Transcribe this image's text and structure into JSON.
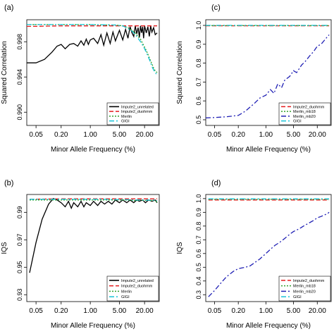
{
  "figure": {
    "panels": [
      {
        "tag": "(a)",
        "ylabel": "Squared Correlation",
        "xlabel": "Minor Allele Frequency (%)"
      },
      {
        "tag": "(c)",
        "ylabel": "Squared Correlation",
        "xlabel": "Minor Allele Frequency (%)"
      },
      {
        "tag": "(b)",
        "ylabel": "IQS",
        "xlabel": "Minor Allele Frequency (%)"
      },
      {
        "tag": "(d)",
        "ylabel": "IQS",
        "xlabel": "Minor Allele Frequency (%)"
      }
    ]
  },
  "chart_data": [
    {
      "type": "line",
      "title": "(a)",
      "xlabel": "Minor Allele Frequency (%)",
      "ylabel": "Squared Correlation",
      "x_scale": "log",
      "xlim": [
        0.03,
        45
      ],
      "ylim": [
        0.9885,
        1.0005
      ],
      "x_ticks": [
        0.05,
        0.2,
        1.0,
        5.0,
        20.0
      ],
      "x_tick_labels": [
        "0.05",
        "0.20",
        "1.00",
        "5.00",
        "20.00"
      ],
      "y_ticks": [
        0.99,
        0.994,
        0.998
      ],
      "y_tick_labels": [
        "0.990",
        "0.994",
        "0.998"
      ],
      "legend_position": "bottom-right",
      "series": [
        {
          "name": "Impute2_unrelated",
          "color": "#000000",
          "dash": "solid",
          "x": [
            0.03,
            0.05,
            0.08,
            0.12,
            0.16,
            0.2,
            0.25,
            0.32,
            0.4,
            0.5,
            0.6,
            0.7,
            0.8,
            0.9,
            1.0,
            1.2,
            1.5,
            1.8,
            2.1,
            2.5,
            3.0,
            3.5,
            4.0,
            5.0,
            6.0,
            7.0,
            8.0,
            9.0,
            10,
            11,
            12,
            13,
            14,
            15,
            16,
            17,
            18,
            19,
            20,
            22,
            24,
            26,
            28,
            30,
            33,
            36,
            40
          ],
          "y": [
            0.9956,
            0.9956,
            0.996,
            0.9968,
            0.9975,
            0.9977,
            0.9972,
            0.9977,
            0.9978,
            0.9975,
            0.9981,
            0.9976,
            0.9983,
            0.9977,
            0.9982,
            0.9984,
            0.9978,
            0.9988,
            0.9976,
            0.999,
            0.9978,
            0.9991,
            0.9981,
            0.9993,
            0.9982,
            0.9994,
            0.9984,
            0.9997,
            0.999,
            0.9986,
            0.9998,
            0.9989,
            0.9996,
            0.9985,
            0.9998,
            0.999,
            0.9997,
            0.9984,
            0.9998,
            0.999,
            0.9997,
            0.9986,
            0.9998,
            0.9991,
            0.9996,
            0.9988,
            0.999
          ]
        },
        {
          "name": "Impute2_duohmm",
          "color": "#e41a1c",
          "dash": "dashed",
          "x": [
            0.03,
            0.05,
            0.1,
            0.2,
            0.5,
            1,
            2,
            5,
            10,
            20,
            30,
            40
          ],
          "y": [
            0.99975,
            0.99975,
            0.99978,
            0.9998,
            0.9998,
            0.9998,
            0.9998,
            0.9998,
            0.9998,
            0.9998,
            0.9998,
            0.9998
          ]
        },
        {
          "name": "Merlin",
          "color": "#33a02c",
          "dash": "dotted",
          "x": [
            0.03,
            0.1,
            0.5,
            1,
            2,
            4,
            6,
            8,
            10,
            12,
            14,
            16,
            18,
            20,
            22,
            24,
            26,
            28,
            30,
            33,
            36,
            40
          ],
          "y": [
            0.99995,
            0.99995,
            0.99995,
            0.99995,
            0.9999,
            0.9999,
            0.9998,
            0.9996,
            0.9993,
            0.999,
            0.9986,
            0.9983,
            0.9978,
            0.9974,
            0.997,
            0.9966,
            0.9962,
            0.9958,
            0.9955,
            0.995,
            0.9947,
            0.9945
          ]
        },
        {
          "name": "GIGI",
          "color": "#17c3d6",
          "dash": "dashdot",
          "x": [
            0.03,
            0.1,
            0.5,
            1,
            2,
            4,
            6,
            8,
            10,
            12,
            14,
            16,
            18,
            20,
            22,
            24,
            26,
            28,
            30,
            33,
            36,
            40
          ],
          "y": [
            0.99995,
            0.99995,
            0.99995,
            0.99995,
            0.99992,
            0.9999,
            0.9998,
            0.9995,
            0.9992,
            0.9988,
            0.9984,
            0.998,
            0.9976,
            0.9972,
            0.9968,
            0.9964,
            0.996,
            0.9956,
            0.9952,
            0.9948,
            0.9945,
            0.9942
          ]
        }
      ]
    },
    {
      "type": "line",
      "title": "(c)",
      "xlabel": "Minor Allele Frequency (%)",
      "ylabel": "Squared Correlation",
      "x_scale": "log",
      "xlim": [
        0.03,
        45
      ],
      "ylim": [
        0.47,
        1.03
      ],
      "x_ticks": [
        0.05,
        0.2,
        1.0,
        5.0,
        20.0
      ],
      "x_tick_labels": [
        "0.05",
        "0.20",
        "1.00",
        "5.00",
        "20.00"
      ],
      "y_ticks": [
        0.5,
        0.6,
        0.7,
        0.8,
        0.9,
        1.0
      ],
      "y_tick_labels": [
        "0.5",
        "0.6",
        "0.7",
        "0.8",
        "0.9",
        "1.0"
      ],
      "legend_position": "bottom-right",
      "series": [
        {
          "name": "Impute2_duohmm",
          "color": "#e41a1c",
          "dash": "dashed",
          "x": [
            0.03,
            40
          ],
          "y": [
            0.998,
            0.998
          ]
        },
        {
          "name": "Merlin_mb18",
          "color": "#33a02c",
          "dash": "dotted",
          "x": [
            0.03,
            40
          ],
          "y": [
            0.999,
            0.999
          ]
        },
        {
          "name": "Merlin_mb20",
          "color": "#1f1fb4",
          "dash": "dashdot",
          "x": [
            0.03,
            0.05,
            0.1,
            0.2,
            0.3,
            0.5,
            0.7,
            1.0,
            1.3,
            1.6,
            2.0,
            2.5,
            3.0,
            4.0,
            5.0,
            6.0,
            8.0,
            10,
            13,
            16,
            20,
            25,
            30,
            36,
            40
          ],
          "y": [
            0.51,
            0.512,
            0.516,
            0.523,
            0.545,
            0.585,
            0.615,
            0.63,
            0.66,
            0.64,
            0.69,
            0.67,
            0.71,
            0.73,
            0.76,
            0.75,
            0.79,
            0.81,
            0.84,
            0.86,
            0.89,
            0.9,
            0.92,
            0.94,
            0.95
          ]
        },
        {
          "name": "GIGI",
          "color": "#17c3d6",
          "dash": "dashdot",
          "x": [
            0.03,
            40
          ],
          "y": [
            1.0,
            1.0
          ]
        }
      ]
    },
    {
      "type": "line",
      "title": "(b)",
      "xlabel": "Minor Allele Frequency (%)",
      "ylabel": "IQS",
      "x_scale": "log",
      "xlim": [
        0.03,
        45
      ],
      "ylim": [
        0.925,
        1.003
      ],
      "x_ticks": [
        0.05,
        0.2,
        1.0,
        5.0,
        20.0
      ],
      "x_tick_labels": [
        "0.05",
        "0.20",
        "1.00",
        "5.00",
        "20.00"
      ],
      "y_ticks": [
        0.93,
        0.95,
        0.97,
        0.99
      ],
      "y_tick_labels": [
        "0.93",
        "0.95",
        "0.97",
        "0.99"
      ],
      "legend_position": "bottom-right",
      "series": [
        {
          "name": "Impute2_unrelated",
          "color": "#000000",
          "dash": "solid",
          "x": [
            0.035,
            0.05,
            0.07,
            0.1,
            0.13,
            0.16,
            0.2,
            0.25,
            0.3,
            0.35,
            0.4,
            0.5,
            0.6,
            0.7,
            0.8,
            1.0,
            1.2,
            1.5,
            1.8,
            2.2,
            2.7,
            3.3,
            4.0,
            5.0,
            6.0,
            7.5,
            9.0,
            11,
            13,
            15,
            18,
            21,
            25,
            30,
            36,
            40
          ],
          "y": [
            0.946,
            0.968,
            0.985,
            0.996,
            1.0,
            0.999,
            0.997,
            0.994,
            0.998,
            0.993,
            0.997,
            0.994,
            0.998,
            0.994,
            0.997,
            0.995,
            0.998,
            0.995,
            0.998,
            0.996,
            0.998,
            0.996,
            0.999,
            0.997,
            0.999,
            0.997,
            0.999,
            0.997,
            0.999,
            0.998,
            0.999,
            0.997,
            0.999,
            0.998,
            0.999,
            0.997
          ]
        },
        {
          "name": "Impute2_duohmm",
          "color": "#e41a1c",
          "dash": "dashed",
          "x": [
            0.035,
            0.05,
            0.1,
            0.2,
            0.5,
            1,
            2,
            5,
            10,
            20,
            30,
            40
          ],
          "y": [
            0.9995,
            0.9996,
            0.9997,
            0.9998,
            0.9998,
            0.9998,
            0.9998,
            0.9998,
            0.9998,
            0.9998,
            0.9998,
            0.9998
          ]
        },
        {
          "name": "Merlin",
          "color": "#33a02c",
          "dash": "dotted",
          "x": [
            0.035,
            0.1,
            0.5,
            1,
            2,
            4,
            8,
            12,
            16,
            20,
            24,
            28,
            32,
            36,
            40
          ],
          "y": [
            0.999,
            0.999,
            0.999,
            0.999,
            0.999,
            0.999,
            0.999,
            0.9985,
            0.999,
            0.9985,
            0.999,
            0.9985,
            0.999,
            0.998,
            0.9975
          ]
        },
        {
          "name": "GIGI",
          "color": "#17c3d6",
          "dash": "dashdot",
          "x": [
            0.035,
            0.1,
            0.5,
            1,
            2,
            4,
            8,
            12,
            16,
            20,
            24,
            28,
            32,
            36,
            40
          ],
          "y": [
            0.9995,
            0.9995,
            0.9995,
            0.9995,
            0.9995,
            0.9993,
            0.9992,
            0.999,
            0.9991,
            0.9989,
            0.999,
            0.9988,
            0.999,
            0.9986,
            0.9985
          ]
        }
      ]
    },
    {
      "type": "line",
      "title": "(d)",
      "xlabel": "Minor Allele Frequency (%)",
      "ylabel": "IQS",
      "x_scale": "log",
      "xlim": [
        0.03,
        45
      ],
      "ylim": [
        0.25,
        1.03
      ],
      "x_ticks": [
        0.05,
        0.2,
        1.0,
        5.0,
        20.0
      ],
      "x_tick_labels": [
        "0.05",
        "0.20",
        "1.00",
        "5.00",
        "20.00"
      ],
      "y_ticks": [
        0.3,
        0.4,
        0.5,
        0.6,
        0.7,
        0.8,
        0.9,
        1.0
      ],
      "y_tick_labels": [
        "0.3",
        "0.4",
        "0.5",
        "0.6",
        "0.7",
        "0.8",
        "0.9",
        "1.0"
      ],
      "legend_position": "bottom-right",
      "series": [
        {
          "name": "Impute2_duohmm",
          "color": "#e41a1c",
          "dash": "dashed",
          "x": [
            0.035,
            40
          ],
          "y": [
            0.99,
            0.99
          ]
        },
        {
          "name": "Merlin_mb18",
          "color": "#33a02c",
          "dash": "dotted",
          "x": [
            0.035,
            40
          ],
          "y": [
            0.995,
            0.995
          ]
        },
        {
          "name": "Merlin_mb20",
          "color": "#1f1fb4",
          "dash": "dashdot",
          "x": [
            0.035,
            0.05,
            0.07,
            0.1,
            0.15,
            0.2,
            0.3,
            0.4,
            0.5,
            0.7,
            1.0,
            1.3,
            1.7,
            2.2,
            3.0,
            4.0,
            5.0,
            7.0,
            9.0,
            12,
            16,
            20,
            25,
            30,
            36,
            40
          ],
          "y": [
            0.285,
            0.33,
            0.38,
            0.43,
            0.47,
            0.49,
            0.5,
            0.51,
            0.53,
            0.56,
            0.6,
            0.63,
            0.66,
            0.68,
            0.71,
            0.74,
            0.76,
            0.78,
            0.8,
            0.82,
            0.84,
            0.86,
            0.87,
            0.88,
            0.89,
            0.9
          ]
        },
        {
          "name": "GIGI",
          "color": "#17c3d6",
          "dash": "dashdot",
          "x": [
            0.035,
            40
          ],
          "y": [
            0.998,
            0.998
          ]
        }
      ]
    }
  ]
}
